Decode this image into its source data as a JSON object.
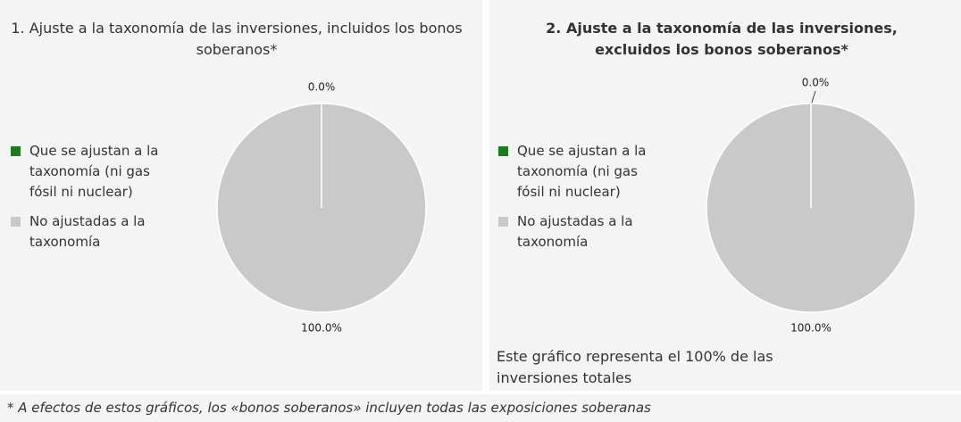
{
  "chart_data": [
    {
      "type": "pie",
      "title": "1. Ajuste a la taxonomía de las inversiones, incluidos los bonos soberanos*",
      "categories": [
        "Que se ajustan a la taxonomía (ni gas fósil ni nuclear)",
        "No ajustadas a la taxonomía"
      ],
      "values": [
        0,
        100
      ],
      "value_labels": [
        "0.0%",
        "100.0%"
      ],
      "colors": [
        "#1e7a1e",
        "#c9c9c9"
      ],
      "legend": "left"
    },
    {
      "type": "pie",
      "title": "2. Ajuste a la taxonomía de las inversiones, excluidos los bonos soberanos*",
      "categories": [
        "Que se ajustan a la taxonomía (ni gas fósil ni nuclear)",
        "No ajustadas a la taxonomía"
      ],
      "values": [
        0,
        100
      ],
      "value_labels": [
        "0.0%",
        "100.0%"
      ],
      "colors": [
        "#1e7a1e",
        "#c9c9c9"
      ],
      "legend": "left",
      "note": "Este gráfico representa el 100% de las inversiones totales"
    }
  ],
  "footnote": "* A efectos de estos gráficos, los «bonos soberanos» incluyen todas las exposiciones soberanas"
}
